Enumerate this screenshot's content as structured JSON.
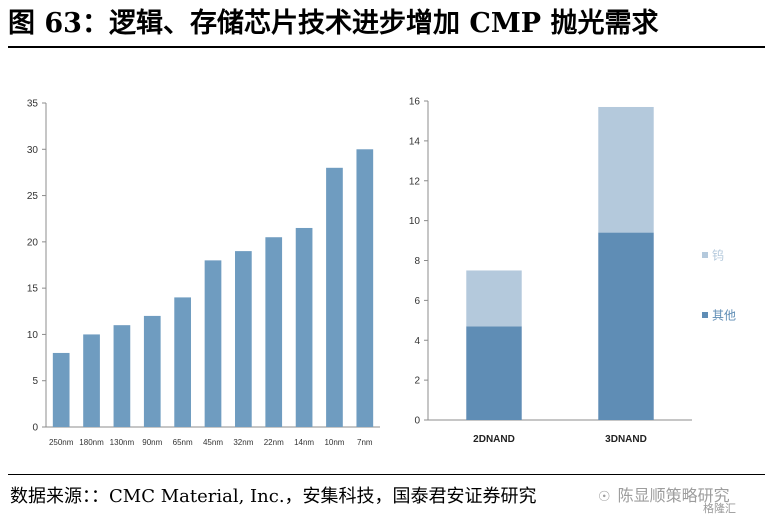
{
  "header": {
    "title": "图 63：逻辑、存储芯片技术进步增加 CMP 抛光需求"
  },
  "footer": {
    "source": "数据来源：：CMC Material, Inc.，安集科技，国泰君安证券研究",
    "watermark": "陈显顺策略研究",
    "watermark_corner": "格隆汇"
  },
  "colors": {
    "bar": "#6f9cc0",
    "other": "#5f8db5",
    "tungsten": "#b4c9dc",
    "axis": "#8c8c8c"
  },
  "chart_data": [
    {
      "type": "bar",
      "categories": [
        "250nm",
        "180nm",
        "130nm",
        "90nm",
        "65nm",
        "45nm",
        "32nm",
        "22nm",
        "14nm",
        "10nm",
        "7nm"
      ],
      "values": [
        8,
        10,
        11,
        12,
        14,
        18,
        19,
        20.5,
        21.5,
        28,
        30
      ],
      "ylim": [
        0,
        35
      ],
      "yticks": [
        0,
        5,
        10,
        15,
        20,
        25,
        30,
        35
      ],
      "grid": false
    },
    {
      "type": "bar",
      "stacked": true,
      "categories": [
        "2DNAND",
        "3DNAND"
      ],
      "series": [
        {
          "name": "其他",
          "values": [
            4.7,
            9.4
          ]
        },
        {
          "name": "钨",
          "values": [
            2.8,
            6.3
          ]
        }
      ],
      "ylim": [
        0,
        16
      ],
      "yticks": [
        0,
        2,
        4,
        6,
        8,
        10,
        12,
        14,
        16
      ],
      "legend_position": "right",
      "grid": false
    }
  ]
}
